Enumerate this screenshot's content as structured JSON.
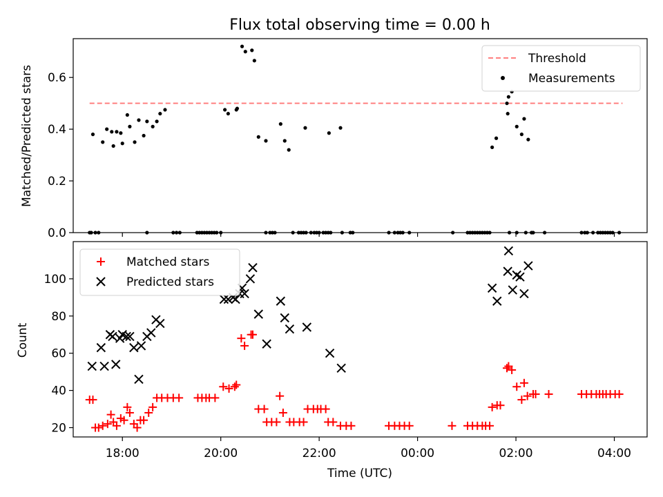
{
  "figure": {
    "title": "Flux total observing time = 0.00 h"
  },
  "chart_data": [
    {
      "type": "scatter",
      "name": "top",
      "title": "Flux total observing time = 0.00 h",
      "ylabel": "Matched/Predicted stars",
      "xlabel": "",
      "xlim": [
        "17:00",
        "04:40"
      ],
      "ylim": [
        0,
        0.75
      ],
      "yticks": [
        0.0,
        0.2,
        0.4,
        0.6
      ],
      "ytick_labels": [
        "0.0",
        "0.2",
        "0.4",
        "0.6"
      ],
      "legend": {
        "location": "upper right",
        "entries": [
          "Threshold",
          "Measurements"
        ]
      },
      "threshold": {
        "name": "Threshold",
        "y": 0.5,
        "x_start": "17:20",
        "x_end": "04:10",
        "color": "#ff7f7f"
      },
      "series": [
        {
          "name": "Measurements",
          "color": "#000000",
          "points": [
            [
              "17:24",
              0.38
            ],
            [
              "17:36",
              0.35
            ],
            [
              "17:41",
              0.4
            ],
            [
              "17:47",
              0.39
            ],
            [
              "17:49",
              0.335
            ],
            [
              "17:53",
              0.39
            ],
            [
              "17:58",
              0.385
            ],
            [
              "18:00",
              0.345
            ],
            [
              "18:06",
              0.455
            ],
            [
              "18:09",
              0.41
            ],
            [
              "18:15",
              0.35
            ],
            [
              "18:20",
              0.435
            ],
            [
              "18:26",
              0.375
            ],
            [
              "18:30",
              0.43
            ],
            [
              "18:37",
              0.41
            ],
            [
              "18:42",
              0.43
            ],
            [
              "18:46",
              0.46
            ],
            [
              "18:52",
              0.475
            ],
            [
              "20:05",
              0.475
            ],
            [
              "20:09",
              0.46
            ],
            [
              "20:19",
              0.475
            ],
            [
              "20:20",
              0.48
            ],
            [
              "20:26",
              0.72
            ],
            [
              "20:30",
              0.7
            ],
            [
              "20:38",
              0.705
            ],
            [
              "20:41",
              0.665
            ],
            [
              "20:46",
              0.37
            ],
            [
              "20:55",
              0.355
            ],
            [
              "21:13",
              0.42
            ],
            [
              "21:18",
              0.355
            ],
            [
              "21:23",
              0.32
            ],
            [
              "21:43",
              0.405
            ],
            [
              "22:12",
              0.385
            ],
            [
              "22:26",
              0.405
            ],
            [
              "01:31",
              0.33
            ],
            [
              "01:36",
              0.365
            ],
            [
              "01:49",
              0.5
            ],
            [
              "01:50",
              0.46
            ],
            [
              "01:51",
              0.525
            ],
            [
              "01:55",
              0.545
            ],
            [
              "02:01",
              0.41
            ],
            [
              "02:07",
              0.38
            ],
            [
              "02:10",
              0.44
            ],
            [
              "02:15",
              0.36
            ]
          ],
          "zero_points": [
            "17:20",
            "17:22",
            "17:27",
            "17:31",
            "18:30",
            "19:02",
            "19:06",
            "19:10",
            "19:31",
            "19:34",
            "19:37",
            "19:40",
            "19:43",
            "19:46",
            "19:49",
            "19:52",
            "19:55",
            "20:00",
            "20:55",
            "21:00",
            "21:03",
            "21:06",
            "21:28",
            "21:35",
            "21:38",
            "21:41",
            "21:44",
            "21:50",
            "21:54",
            "21:57",
            "22:00",
            "22:05",
            "22:08",
            "22:11",
            "22:14",
            "22:28",
            "22:38",
            "22:41",
            "23:25",
            "23:32",
            "23:36",
            "23:39",
            "23:42",
            "23:50",
            "00:43",
            "01:01",
            "01:04",
            "01:07",
            "01:10",
            "01:13",
            "01:16",
            "01:19",
            "01:22",
            "01:25",
            "01:28",
            "01:52",
            "02:01",
            "02:12",
            "02:19",
            "02:21",
            "02:35",
            "03:20",
            "03:24",
            "03:27",
            "03:34",
            "03:40",
            "03:43",
            "03:46",
            "03:49",
            "03:52",
            "03:55",
            "03:58",
            "04:06"
          ]
        }
      ]
    },
    {
      "type": "scatter",
      "name": "bottom",
      "title": "",
      "xlabel": "Time (UTC)",
      "ylabel": "Count",
      "xlim": [
        "17:00",
        "04:40"
      ],
      "ylim": [
        15,
        120
      ],
      "xticks": [
        "18:00",
        "20:00",
        "22:00",
        "00:00",
        "02:00",
        "04:00"
      ],
      "yticks": [
        20,
        40,
        60,
        80,
        100
      ],
      "legend": {
        "location": "upper left",
        "entries": [
          "Matched stars",
          "Predicted stars"
        ]
      },
      "series": [
        {
          "name": "Matched stars",
          "marker": "plus",
          "color": "#ff0000",
          "points": [
            [
              "17:20",
              35
            ],
            [
              "17:24",
              35
            ],
            [
              "17:27",
              20
            ],
            [
              "17:31",
              20
            ],
            [
              "17:36",
              21
            ],
            [
              "17:42",
              22
            ],
            [
              "17:46",
              27
            ],
            [
              "17:49",
              23
            ],
            [
              "17:53",
              21
            ],
            [
              "17:58",
              25
            ],
            [
              "18:02",
              24
            ],
            [
              "18:06",
              31
            ],
            [
              "18:09",
              28
            ],
            [
              "18:14",
              22
            ],
            [
              "18:18",
              20
            ],
            [
              "18:22",
              24
            ],
            [
              "18:26",
              24
            ],
            [
              "18:32",
              28
            ],
            [
              "18:37",
              31
            ],
            [
              "18:42",
              36
            ],
            [
              "18:48",
              36
            ],
            [
              "18:55",
              36
            ],
            [
              "19:02",
              36
            ],
            [
              "19:09",
              36
            ],
            [
              "19:32",
              36
            ],
            [
              "19:37",
              36
            ],
            [
              "19:42",
              36
            ],
            [
              "19:46",
              36
            ],
            [
              "19:53",
              36
            ],
            [
              "20:03",
              42
            ],
            [
              "20:10",
              41
            ],
            [
              "20:17",
              42
            ],
            [
              "20:19",
              43
            ],
            [
              "20:25",
              68
            ],
            [
              "20:29",
              64
            ],
            [
              "20:37",
              70
            ],
            [
              "20:39",
              70
            ],
            [
              "20:46",
              30
            ],
            [
              "20:53",
              30
            ],
            [
              "20:56",
              23
            ],
            [
              "21:02",
              23
            ],
            [
              "21:08",
              23
            ],
            [
              "21:12",
              37
            ],
            [
              "21:16",
              28
            ],
            [
              "21:24",
              23
            ],
            [
              "21:29",
              23
            ],
            [
              "21:36",
              23
            ],
            [
              "21:41",
              23
            ],
            [
              "21:46",
              30
            ],
            [
              "21:53",
              30
            ],
            [
              "21:58",
              30
            ],
            [
              "22:02",
              30
            ],
            [
              "22:08",
              30
            ],
            [
              "22:11",
              23
            ],
            [
              "22:17",
              23
            ],
            [
              "22:26",
              21
            ],
            [
              "22:33",
              21
            ],
            [
              "22:39",
              21
            ],
            [
              "23:25",
              21
            ],
            [
              "23:32",
              21
            ],
            [
              "23:38",
              21
            ],
            [
              "23:44",
              21
            ],
            [
              "23:50",
              21
            ],
            [
              "00:42",
              21
            ],
            [
              "01:01",
              21
            ],
            [
              "01:07",
              21
            ],
            [
              "01:13",
              21
            ],
            [
              "01:19",
              21
            ],
            [
              "01:23",
              21
            ],
            [
              "01:28",
              21
            ],
            [
              "01:31",
              31
            ],
            [
              "01:37",
              32
            ],
            [
              "01:41",
              32
            ],
            [
              "01:49",
              52
            ],
            [
              "01:51",
              53
            ],
            [
              "01:55",
              51
            ],
            [
              "02:01",
              42
            ],
            [
              "02:07",
              35
            ],
            [
              "02:10",
              44
            ],
            [
              "02:14",
              37
            ],
            [
              "02:21",
              38
            ],
            [
              "02:24",
              38
            ],
            [
              "02:40",
              38
            ],
            [
              "03:20",
              38
            ],
            [
              "03:26",
              38
            ],
            [
              "03:32",
              38
            ],
            [
              "03:38",
              38
            ],
            [
              "03:42",
              38
            ],
            [
              "03:46",
              38
            ],
            [
              "03:50",
              38
            ],
            [
              "03:55",
              38
            ],
            [
              "04:01",
              38
            ],
            [
              "04:06",
              38
            ]
          ]
        },
        {
          "name": "Predicted stars",
          "marker": "x",
          "color": "#000000",
          "points": [
            [
              "17:23",
              53
            ],
            [
              "17:34",
              63
            ],
            [
              "17:38",
              53
            ],
            [
              "17:45",
              70
            ],
            [
              "17:48",
              69
            ],
            [
              "17:52",
              54
            ],
            [
              "17:57",
              68
            ],
            [
              "18:00",
              70
            ],
            [
              "18:05",
              69
            ],
            [
              "18:09",
              69
            ],
            [
              "18:14",
              63
            ],
            [
              "18:20",
              46
            ],
            [
              "18:23",
              64
            ],
            [
              "18:30",
              69
            ],
            [
              "18:35",
              71
            ],
            [
              "18:41",
              78
            ],
            [
              "18:46",
              76
            ],
            [
              "20:04",
              89
            ],
            [
              "20:09",
              89
            ],
            [
              "20:15",
              90
            ],
            [
              "20:18",
              89
            ],
            [
              "20:23",
              92
            ],
            [
              "20:26",
              95
            ],
            [
              "20:29",
              92
            ],
            [
              "20:36",
              100
            ],
            [
              "20:39",
              106
            ],
            [
              "20:46",
              81
            ],
            [
              "20:56",
              65
            ],
            [
              "21:13",
              88
            ],
            [
              "21:18",
              79
            ],
            [
              "21:24",
              73
            ],
            [
              "21:45",
              74
            ],
            [
              "22:13",
              60
            ],
            [
              "22:27",
              52
            ],
            [
              "01:31",
              95
            ],
            [
              "01:37",
              88
            ],
            [
              "01:50",
              104
            ],
            [
              "01:51",
              115
            ],
            [
              "01:56",
              94
            ],
            [
              "02:01",
              102
            ],
            [
              "02:05",
              101
            ],
            [
              "02:10",
              92
            ],
            [
              "02:15",
              107
            ]
          ]
        }
      ]
    }
  ]
}
